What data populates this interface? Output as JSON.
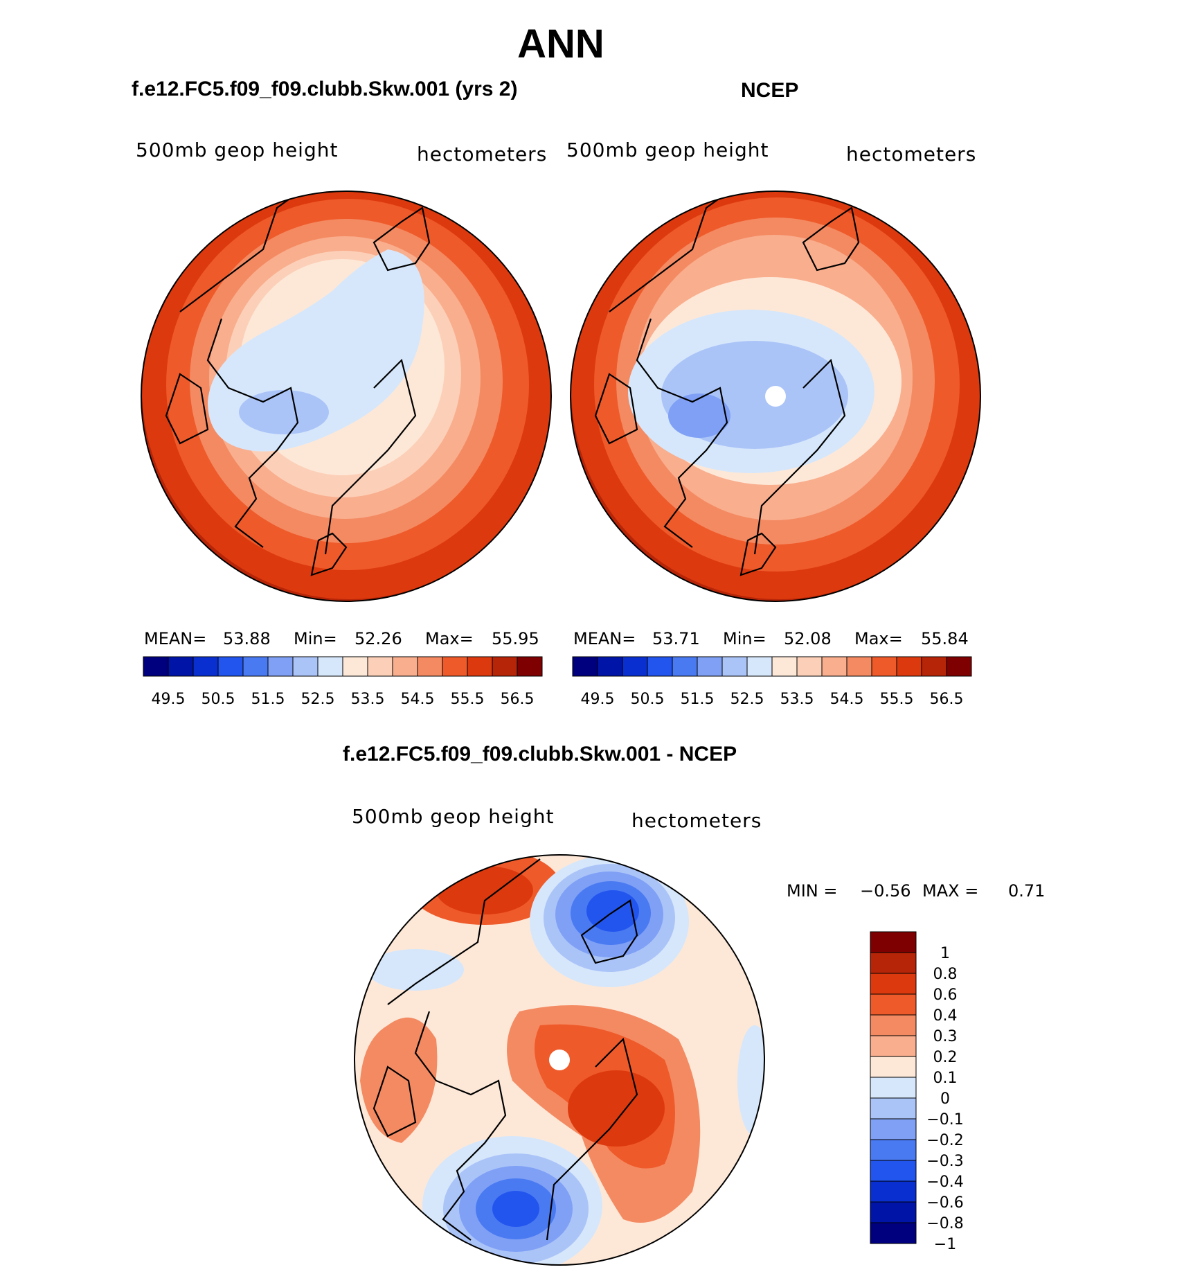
{
  "title": "ANN",
  "panels": [
    {
      "case_title": "f.e12.FC5.f09_f09.clubb.Skw.001 (yrs 2)",
      "variable": "500mb geop height",
      "units": "hectometers",
      "stats": {
        "mean_label": "MEAN=",
        "mean": "53.88",
        "min_label": "Min=",
        "min": "52.26",
        "max_label": "Max=",
        "max": "55.95"
      }
    },
    {
      "case_title": "NCEP",
      "variable": "500mb geop height",
      "units": "hectometers",
      "stats": {
        "mean_label": "MEAN=",
        "mean": "53.71",
        "min_label": "Min=",
        "min": "52.08",
        "max_label": "Max=",
        "max": "55.84"
      }
    },
    {
      "case_title": "f.e12.FC5.f09_f09.clubb.Skw.001 - NCEP",
      "variable": "500mb geop height",
      "units": "hectometers",
      "stats": {
        "min_label": "MIN =",
        "min": "−0.56",
        "max_label": "MAX =",
        "max": "0.71"
      }
    }
  ],
  "colorbar_abs": {
    "colors": [
      "#00007f",
      "#0015a8",
      "#0a2fd1",
      "#2255ee",
      "#4a7af2",
      "#7fa0f5",
      "#abc4f8",
      "#d6e7fb",
      "#fde8d8",
      "#fcd0b8",
      "#f9ae8e",
      "#f48a62",
      "#ef5a2a",
      "#dc3a0e",
      "#b72508",
      "#7f0000"
    ],
    "tick_labels": [
      "49.5",
      "50.5",
      "51.5",
      "52.5",
      "53.5",
      "54.5",
      "55.5",
      "56.5"
    ]
  },
  "colorbar_diff": {
    "colors": [
      "#7f0000",
      "#b72508",
      "#dc3a0e",
      "#ef5a2a",
      "#f48a62",
      "#f9ae8e",
      "#fde8d8",
      "#d6e7fb",
      "#abc4f8",
      "#7fa0f5",
      "#4a7af2",
      "#2255ee",
      "#0a2fd1",
      "#0015a8",
      "#00007f"
    ],
    "tick_labels": [
      "1",
      "0.8",
      "0.6",
      "0.4",
      "0.3",
      "0.2",
      "0.1",
      "0",
      "−0.1",
      "−0.2",
      "−0.3",
      "−0.4",
      "−0.6",
      "−0.8",
      "−1"
    ]
  }
}
